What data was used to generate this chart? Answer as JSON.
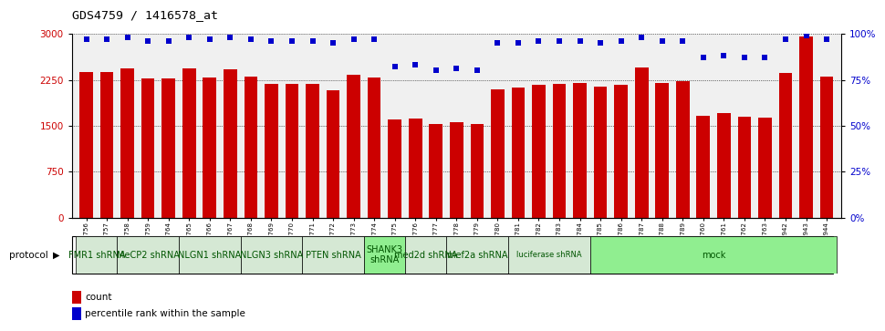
{
  "title": "GDS4759 / 1416578_at",
  "samples": [
    "GSM1145756",
    "GSM1145757",
    "GSM1145758",
    "GSM1145759",
    "GSM1145764",
    "GSM1145765",
    "GSM1145766",
    "GSM1145767",
    "GSM1145768",
    "GSM1145769",
    "GSM1145770",
    "GSM1145771",
    "GSM1145772",
    "GSM1145773",
    "GSM1145774",
    "GSM1145775",
    "GSM1145776",
    "GSM1145777",
    "GSM1145778",
    "GSM1145779",
    "GSM1145780",
    "GSM1145781",
    "GSM1145782",
    "GSM1145783",
    "GSM1145784",
    "GSM1145785",
    "GSM1145786",
    "GSM1145787",
    "GSM1145788",
    "GSM1145789",
    "GSM1145760",
    "GSM1145761",
    "GSM1145762",
    "GSM1145763",
    "GSM1145942",
    "GSM1145943",
    "GSM1145944"
  ],
  "counts": [
    2380,
    2380,
    2430,
    2270,
    2270,
    2440,
    2285,
    2420,
    2300,
    2180,
    2185,
    2190,
    2085,
    2340,
    2285,
    1600,
    1620,
    1530,
    1560,
    1530,
    2100,
    2120,
    2175,
    2185,
    2195,
    2145,
    2165,
    2450,
    2205,
    2225,
    1660,
    1700,
    1650,
    1640,
    2360,
    2960,
    2310
  ],
  "percentiles": [
    97,
    97,
    98,
    96,
    96,
    98,
    97,
    98,
    97,
    96,
    96,
    96,
    95,
    97,
    97,
    82,
    83,
    80,
    81,
    80,
    95,
    95,
    96,
    96,
    96,
    95,
    96,
    98,
    96,
    96,
    87,
    88,
    87,
    87,
    97,
    99,
    97
  ],
  "protocols": [
    {
      "label": "FMR1 shRNA",
      "start": 0,
      "end": 2,
      "color": "#d5e8d4"
    },
    {
      "label": "MeCP2 shRNA",
      "start": 2,
      "end": 5,
      "color": "#d5e8d4"
    },
    {
      "label": "NLGN1 shRNA",
      "start": 5,
      "end": 8,
      "color": "#d5e8d4"
    },
    {
      "label": "NLGN3 shRNA",
      "start": 8,
      "end": 11,
      "color": "#d5e8d4"
    },
    {
      "label": "PTEN shRNA",
      "start": 11,
      "end": 14,
      "color": "#d5e8d4"
    },
    {
      "label": "SHANK3\nshRNA",
      "start": 14,
      "end": 16,
      "color": "#90ee90"
    },
    {
      "label": "med2d shRNA",
      "start": 16,
      "end": 18,
      "color": "#d5e8d4"
    },
    {
      "label": "mef2a shRNA",
      "start": 18,
      "end": 21,
      "color": "#d5e8d4"
    },
    {
      "label": "luciferase shRNA",
      "start": 21,
      "end": 25,
      "color": "#d5e8d4"
    },
    {
      "label": "mock",
      "start": 25,
      "end": 37,
      "color": "#90ee90"
    }
  ],
  "bar_color": "#cc0000",
  "dot_color": "#0000cc",
  "ylim": [
    0,
    3000
  ],
  "ylim_right": [
    0,
    100
  ],
  "yticks_left": [
    0,
    750,
    1500,
    2250,
    3000
  ],
  "yticks_right": [
    0,
    25,
    50,
    75,
    100
  ],
  "background_color": "#f0f0f0",
  "grid_color": "#000000"
}
